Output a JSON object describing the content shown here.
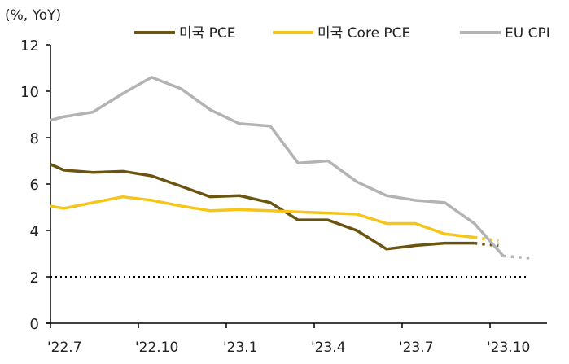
{
  "chart_data": {
    "type": "line",
    "title": "",
    "ylabel": "(%, YoY)",
    "xlabel": "",
    "ylim": [
      0,
      12
    ],
    "yticks": [
      0,
      2,
      4,
      6,
      8,
      10,
      12
    ],
    "xlim": [
      "2022-07-01",
      "2023-12-01"
    ],
    "xticks": [
      {
        "date": "2022-07-01",
        "label": "'22.7"
      },
      {
        "date": "2022-10-01",
        "label": "'22.10"
      },
      {
        "date": "2023-01-01",
        "label": "'23.1"
      },
      {
        "date": "2023-04-01",
        "label": "'23.4"
      },
      {
        "date": "2023-07-01",
        "label": "'23.7"
      },
      {
        "date": "2023-10-01",
        "label": "'23.10"
      }
    ],
    "grid": false,
    "legend": "top",
    "reference_line": {
      "y": 2,
      "style": "dotted",
      "color": "#000000"
    },
    "series": [
      {
        "name": "미국 PCE",
        "color": "#6b5310",
        "x": [
          "2022-07-01",
          "2022-07-15",
          "2022-08-15",
          "2022-09-15",
          "2022-10-15",
          "2022-11-15",
          "2022-12-15",
          "2023-01-15",
          "2023-02-15",
          "2023-03-15",
          "2023-04-15",
          "2023-05-15",
          "2023-06-15",
          "2023-07-15",
          "2023-08-15",
          "2023-09-15"
        ],
        "y": [
          6.85,
          6.6,
          6.5,
          6.55,
          6.35,
          5.9,
          5.45,
          5.5,
          5.2,
          4.45,
          4.45,
          4.0,
          3.2,
          3.35,
          3.45,
          3.45
        ],
        "projection": {
          "x": [
            "2023-09-15",
            "2023-10-10"
          ],
          "y": [
            3.45,
            3.35
          ]
        }
      },
      {
        "name": "미국 Core PCE",
        "color": "#f5c518",
        "x": [
          "2022-07-01",
          "2022-07-15",
          "2022-08-15",
          "2022-09-15",
          "2022-10-15",
          "2022-11-15",
          "2022-12-15",
          "2023-01-15",
          "2023-02-15",
          "2023-03-15",
          "2023-04-15",
          "2023-05-15",
          "2023-06-15",
          "2023-07-15",
          "2023-08-15",
          "2023-09-15"
        ],
        "y": [
          5.05,
          4.95,
          5.2,
          5.45,
          5.3,
          5.05,
          4.85,
          4.9,
          4.85,
          4.8,
          4.75,
          4.7,
          4.3,
          4.3,
          3.85,
          3.7
        ],
        "projection": {
          "x": [
            "2023-09-15",
            "2023-10-10"
          ],
          "y": [
            3.7,
            3.55
          ]
        }
      },
      {
        "name": "EU CPI",
        "color": "#b3b3b3",
        "x": [
          "2022-07-01",
          "2022-07-15",
          "2022-08-15",
          "2022-09-15",
          "2022-10-15",
          "2022-11-15",
          "2022-12-15",
          "2023-01-15",
          "2023-02-15",
          "2023-03-15",
          "2023-04-15",
          "2023-05-15",
          "2023-06-15",
          "2023-07-15",
          "2023-08-15",
          "2023-09-15",
          "2023-10-15"
        ],
        "y": [
          8.75,
          8.9,
          9.1,
          9.9,
          10.6,
          10.1,
          9.2,
          8.6,
          8.5,
          6.9,
          7.0,
          6.1,
          5.5,
          5.3,
          5.2,
          4.3,
          2.9
        ],
        "projection": {
          "x": [
            "2023-10-15",
            "2023-11-15"
          ],
          "y": [
            2.9,
            2.8
          ]
        }
      }
    ]
  }
}
